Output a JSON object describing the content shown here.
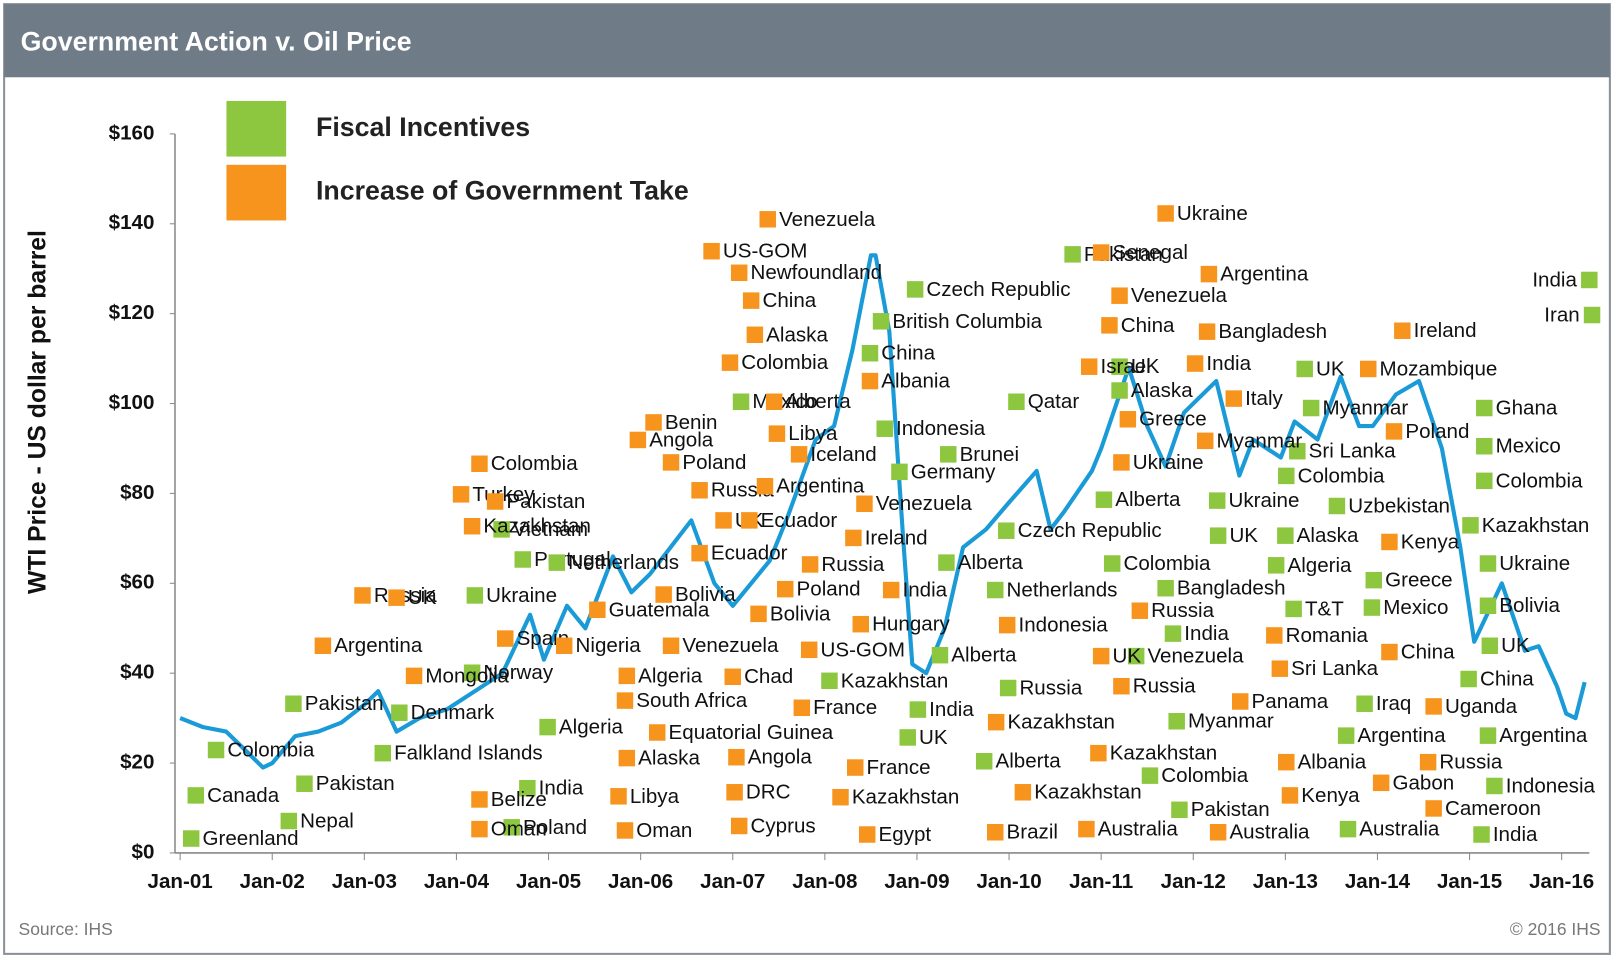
{
  "chart_data": {
    "type": "line",
    "title": "Government Action v. Oil Price",
    "ylabel": "WTI Price - US dollar per barrel",
    "source": "Source: IHS",
    "copyright": "© 2016 IHS",
    "xlim": [
      2001,
      2016.3
    ],
    "xticks": [
      {
        "value": 2001,
        "label": "Jan-01"
      },
      {
        "value": 2002,
        "label": "Jan-02"
      },
      {
        "value": 2003,
        "label": "Jan-03"
      },
      {
        "value": 2004,
        "label": "Jan-04"
      },
      {
        "value": 2005,
        "label": "Jan-05"
      },
      {
        "value": 2006,
        "label": "Jan-06"
      },
      {
        "value": 2007,
        "label": "Jan-07"
      },
      {
        "value": 2008,
        "label": "Jan-08"
      },
      {
        "value": 2009,
        "label": "Jan-09"
      },
      {
        "value": 2010,
        "label": "Jan-10"
      },
      {
        "value": 2011,
        "label": "Jan-11"
      },
      {
        "value": 2012,
        "label": "Jan-12"
      },
      {
        "value": 2013,
        "label": "Jan-13"
      },
      {
        "value": 2014,
        "label": "Jan-14"
      },
      {
        "value": 2015,
        "label": "Jan-15"
      },
      {
        "value": 2016,
        "label": "Jan-16"
      }
    ],
    "ylim": [
      0,
      160
    ],
    "yticks": [
      {
        "value": 0,
        "label": "$0"
      },
      {
        "value": 20,
        "label": "$20"
      },
      {
        "value": 40,
        "label": "$40"
      },
      {
        "value": 60,
        "label": "$60"
      },
      {
        "value": 80,
        "label": "$80"
      },
      {
        "value": 100,
        "label": "$100"
      },
      {
        "value": 120,
        "label": "$120"
      },
      {
        "value": 140,
        "label": "$140"
      },
      {
        "value": 160,
        "label": "$160"
      }
    ],
    "line": {
      "color": "#1a9ad6",
      "x": [
        2001.0,
        2001.25,
        2001.5,
        2001.75,
        2001.9,
        2002.0,
        2002.25,
        2002.5,
        2002.75,
        2003.0,
        2003.15,
        2003.35,
        2003.6,
        2003.9,
        2004.2,
        2004.5,
        2004.8,
        2004.95,
        2005.2,
        2005.4,
        2005.7,
        2005.9,
        2006.1,
        2006.55,
        2006.8,
        2007.0,
        2007.4,
        2007.6,
        2007.9,
        2008.1,
        2008.3,
        2008.5,
        2008.55,
        2008.7,
        2008.85,
        2008.95,
        2009.1,
        2009.3,
        2009.5,
        2009.75,
        2010.0,
        2010.3,
        2010.45,
        2010.6,
        2010.9,
        2011.0,
        2011.3,
        2011.5,
        2011.7,
        2011.9,
        2012.25,
        2012.5,
        2012.65,
        2012.95,
        2013.1,
        2013.35,
        2013.6,
        2013.8,
        2013.95,
        2014.2,
        2014.45,
        2014.7,
        2014.9,
        2015.05,
        2015.35,
        2015.6,
        2015.75,
        2015.95,
        2016.05,
        2016.15,
        2016.25
      ],
      "values": [
        30,
        28,
        27,
        22,
        19,
        20,
        26,
        27,
        29,
        33,
        36,
        27,
        30,
        32,
        36,
        40,
        53,
        43,
        55,
        50,
        66,
        58,
        62,
        74,
        60,
        55,
        65,
        75,
        92,
        95,
        112,
        133,
        133,
        116,
        70,
        42,
        40,
        50,
        68,
        72,
        78,
        85,
        72,
        76,
        85,
        90,
        108,
        95,
        86,
        98,
        105,
        84,
        92,
        88,
        96,
        92,
        106,
        95,
        95,
        102,
        105,
        90,
        68,
        47,
        60,
        45,
        46,
        37,
        31,
        30,
        38
      ]
    },
    "series": [
      {
        "name": "Fiscal Incentives",
        "color": "#8dc63f",
        "labels": [
          "Pakistan",
          "Colombia",
          "Canada",
          "Greenland",
          "Nepal",
          "Pakistan",
          "Ukraine",
          "Denmark",
          "Falkland Islands",
          "Poland",
          "India",
          "Norway",
          "Portugal",
          "Netherlands",
          "Vietnam",
          "Mexico",
          "Algeria",
          "Kazakhstan",
          "Germany",
          "Indonesia",
          "China",
          "British Columbia",
          "Czech Republic",
          "Brunei",
          "Alberta",
          "Alberta",
          "India",
          "UK",
          "Alberta",
          "Russia",
          "Netherlands",
          "Czech Republic",
          "Qatar",
          "UK",
          "Pakistan",
          "Alaska",
          "Alberta",
          "Ukraine",
          "UK",
          "Alaska",
          "Colombia",
          "Bangladesh",
          "India",
          "Venezuela",
          "Myanmar",
          "Colombia",
          "Pakistan",
          "T&T",
          "Algeria",
          "Colombia",
          "Sri Lanka",
          "Myanmar",
          "UK",
          "Uzbekistan",
          "Greece",
          "Mexico",
          "Iraq",
          "Argentina",
          "Australia",
          "India",
          "Indonesia",
          "Argentina",
          "China",
          "UK",
          "Bolivia",
          "Ukraine",
          "Kazakhstan",
          "Colombia",
          "Mexico",
          "Ghana",
          "Iran",
          "India"
        ],
        "x": [
          2002.23,
          2001.39,
          2001.17,
          2001.12,
          2002.18,
          2002.35,
          2004.2,
          2003.38,
          2003.2,
          2004.6,
          2004.77,
          2004.17,
          2004.72,
          2005.09,
          2004.49,
          2007.09,
          2004.99,
          2008.05,
          2008.81,
          2008.65,
          2008.49,
          2008.61,
          2008.98,
          2009.34,
          2009.32,
          2009.25,
          2009.01,
          2008.9,
          2009.73,
          2009.99,
          2009.85,
          2009.97,
          2010.08,
          2011.2,
          2010.69,
          2011.2,
          2011.03,
          2012.26,
          2012.27,
          2013.0,
          2011.12,
          2011.7,
          2011.78,
          2011.38,
          2011.82,
          2011.53,
          2011.85,
          2013.09,
          2012.9,
          2013.01,
          2013.13,
          2013.28,
          2013.21,
          2013.56,
          2013.96,
          2013.94,
          2013.86,
          2013.66,
          2013.68,
          2015.13,
          2015.27,
          2015.2,
          2014.99,
          2015.22,
          2015.2,
          2015.2,
          2015.01,
          2015.16,
          2015.16,
          2015.16,
          2016.33,
          2016.3
        ],
        "values": [
          33.2,
          22.9,
          12.8,
          3.2,
          7.1,
          15.4,
          57.3,
          31.2,
          22.2,
          5.7,
          14.4,
          40.1,
          65.3,
          64.6,
          72.0,
          100.4,
          28.0,
          38.3,
          84.8,
          94.4,
          111.2,
          118.3,
          125.4,
          88.7,
          64.6,
          44.0,
          31.9,
          25.7,
          20.4,
          36.7,
          58.5,
          71.7,
          100.4,
          108.2,
          133.2,
          102.9,
          78.6,
          78.4,
          70.6,
          70.6,
          64.4,
          58.9,
          48.8,
          43.8,
          29.3,
          17.2,
          9.6,
          54.3,
          64.0,
          83.9,
          89.4,
          99.0,
          107.7,
          77.2,
          60.7,
          54.6,
          33.2,
          26.1,
          5.3,
          4.1,
          14.9,
          26.1,
          38.7,
          46.1,
          55.0,
          64.4,
          72.9,
          82.8,
          90.5,
          99.0,
          119.7,
          127.5
        ]
      },
      {
        "name": "Increase of Government Take",
        "color": "#f7941d",
        "labels": [
          "Argentina",
          "Mongolia",
          "Russia",
          "UK",
          "Belize",
          "Oman",
          "Spain",
          "Turkey",
          "Kazakhstan",
          "Pakistan",
          "Colombia",
          "Angola",
          "Benin",
          "Russia",
          "Poland",
          "Alberta",
          "UK",
          "Ecuador",
          "Ecuador",
          "Nigeria",
          "Venezuela",
          "Guatemala",
          "Bolivia",
          "Algeria",
          "South Africa",
          "Alaska",
          "Libya",
          "Oman",
          "Equatorial Guinea",
          "Angola",
          "DRC",
          "Cyprus",
          "Chad",
          "Bolivia",
          "Poland",
          "Russia",
          "US-GOM",
          "Argentina",
          "Iceland",
          "Libya",
          "Colombia",
          "Alaska",
          "China",
          "Newfoundland",
          "US-GOM",
          "Venezuela",
          "France",
          "France",
          "Kazakhstan",
          "Egypt",
          "Hungary",
          "India",
          "Ireland",
          "Venezuela",
          "Albania",
          "Brazil",
          "Kazakhstan",
          "Indonesia",
          "Israel",
          "Senegal",
          "Ukraine",
          "Argentina",
          "Venezuela",
          "China",
          "Bangladesh",
          "India",
          "Greece",
          "Italy",
          "Myanmar",
          "Ukraine",
          "Russia",
          "UK",
          "Russia",
          "Kazakhstan",
          "Kazakhstan",
          "Australia",
          "Australia",
          "Panama",
          "Romania",
          "Sri Lanka",
          "Mozambique",
          "Ireland",
          "Poland",
          "Kenya",
          "China",
          "Albania",
          "Kenya",
          "Gabon",
          "Russia",
          "Uganda",
          "Cameroon"
        ],
        "x": [
          2002.55,
          2003.54,
          2002.98,
          2003.35,
          2004.25,
          2004.25,
          2004.53,
          2004.05,
          2004.17,
          2004.42,
          2004.25,
          2005.97,
          2006.14,
          2006.64,
          2006.33,
          2007.45,
          2006.9,
          2007.18,
          2006.64,
          2005.17,
          2006.33,
          2005.53,
          2006.25,
          2005.85,
          2005.83,
          2005.85,
          2005.76,
          2005.83,
          2006.18,
          2007.04,
          2007.02,
          2007.07,
          2007.0,
          2007.28,
          2007.57,
          2007.84,
          2007.83,
          2007.35,
          2007.72,
          2007.48,
          2006.97,
          2007.24,
          2007.2,
          2007.07,
          2006.77,
          2007.38,
          2007.75,
          2008.33,
          2008.17,
          2008.46,
          2008.39,
          2008.72,
          2008.31,
          2008.43,
          2008.49,
          2009.85,
          2009.86,
          2009.98,
          2010.87,
          2011.0,
          2011.7,
          2012.17,
          2011.2,
          2011.09,
          2012.15,
          2012.02,
          2011.29,
          2012.44,
          2012.13,
          2011.22,
          2011.42,
          2011.0,
          2011.22,
          2010.97,
          2010.15,
          2010.84,
          2012.27,
          2012.51,
          2012.88,
          2012.94,
          2013.9,
          2014.27,
          2014.18,
          2014.13,
          2014.13,
          2013.01,
          2013.05,
          2014.04,
          2014.55,
          2014.61,
          2014.61
        ],
        "values": [
          46.1,
          39.4,
          57.3,
          56.8,
          11.9,
          5.3,
          47.7,
          79.8,
          72.7,
          78.2,
          86.6,
          91.9,
          95.8,
          80.7,
          86.9,
          100.4,
          74.0,
          74.0,
          66.7,
          46.1,
          46.1,
          54.1,
          57.5,
          39.4,
          33.9,
          21.1,
          12.6,
          5.0,
          26.8,
          21.3,
          13.5,
          6.0,
          39.2,
          53.2,
          58.7,
          64.2,
          45.2,
          81.6,
          88.7,
          93.3,
          109.1,
          115.3,
          122.9,
          129.1,
          133.9,
          141.0,
          32.3,
          19.0,
          12.4,
          4.1,
          50.9,
          58.5,
          70.1,
          77.7,
          105.0,
          4.6,
          29.1,
          50.7,
          108.2,
          133.6,
          142.3,
          128.8,
          124.0,
          117.4,
          116.0,
          108.9,
          96.5,
          101.1,
          91.7,
          86.9,
          53.9,
          43.8,
          37.1,
          22.2,
          13.5,
          5.3,
          4.6,
          33.7,
          48.4,
          41.0,
          107.7,
          116.2,
          93.8,
          69.2,
          44.7,
          20.2,
          12.8,
          15.6,
          20.2,
          32.6,
          9.9
        ]
      }
    ]
  }
}
